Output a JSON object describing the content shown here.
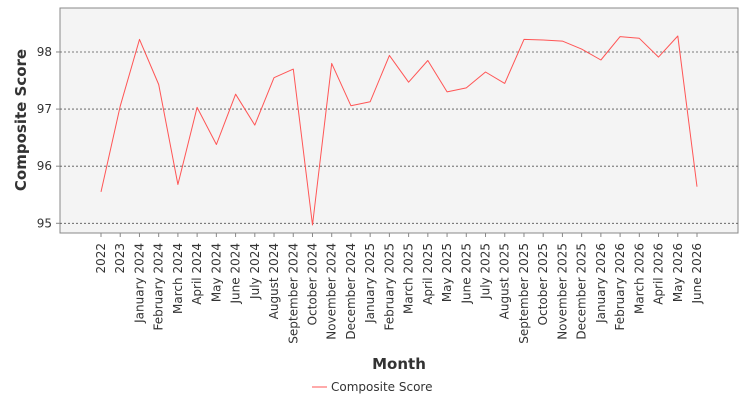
{
  "chart_data": {
    "type": "line",
    "xlabel": "Month",
    "ylabel": "Composite Score",
    "ylim": [
      94.9,
      98.7
    ],
    "yticks": [
      95,
      96,
      97,
      98
    ],
    "grid": true,
    "legend_position": "bottom",
    "categories": [
      "2022",
      "2023",
      "January 2024",
      "February 2024",
      "March 2024",
      "April 2024",
      "May 2024",
      "June 2024",
      "July 2024",
      "August 2024",
      "September 2024",
      "October 2024",
      "November 2024",
      "December 2024",
      "January 2025",
      "February 2025",
      "March 2025",
      "April 2025",
      "May 2025",
      "June 2025",
      "July 2025",
      "August 2025",
      "September 2025",
      "October 2025",
      "November 2025",
      "December 2025",
      "January 2026",
      "February 2026",
      "March 2026",
      "April 2026",
      "May 2026",
      "June 2026"
    ],
    "series": [
      {
        "name": "Composite Score",
        "color": "#ff5555",
        "values": [
          95.55,
          97.05,
          98.22,
          97.43,
          95.68,
          97.03,
          96.38,
          97.26,
          96.72,
          97.55,
          97.7,
          94.97,
          97.8,
          97.06,
          97.13,
          97.94,
          97.47,
          97.85,
          97.3,
          97.37,
          97.65,
          97.45,
          98.22,
          98.21,
          98.19,
          98.05,
          97.86,
          98.27,
          98.24,
          97.91,
          98.28,
          95.64
        ]
      }
    ]
  }
}
